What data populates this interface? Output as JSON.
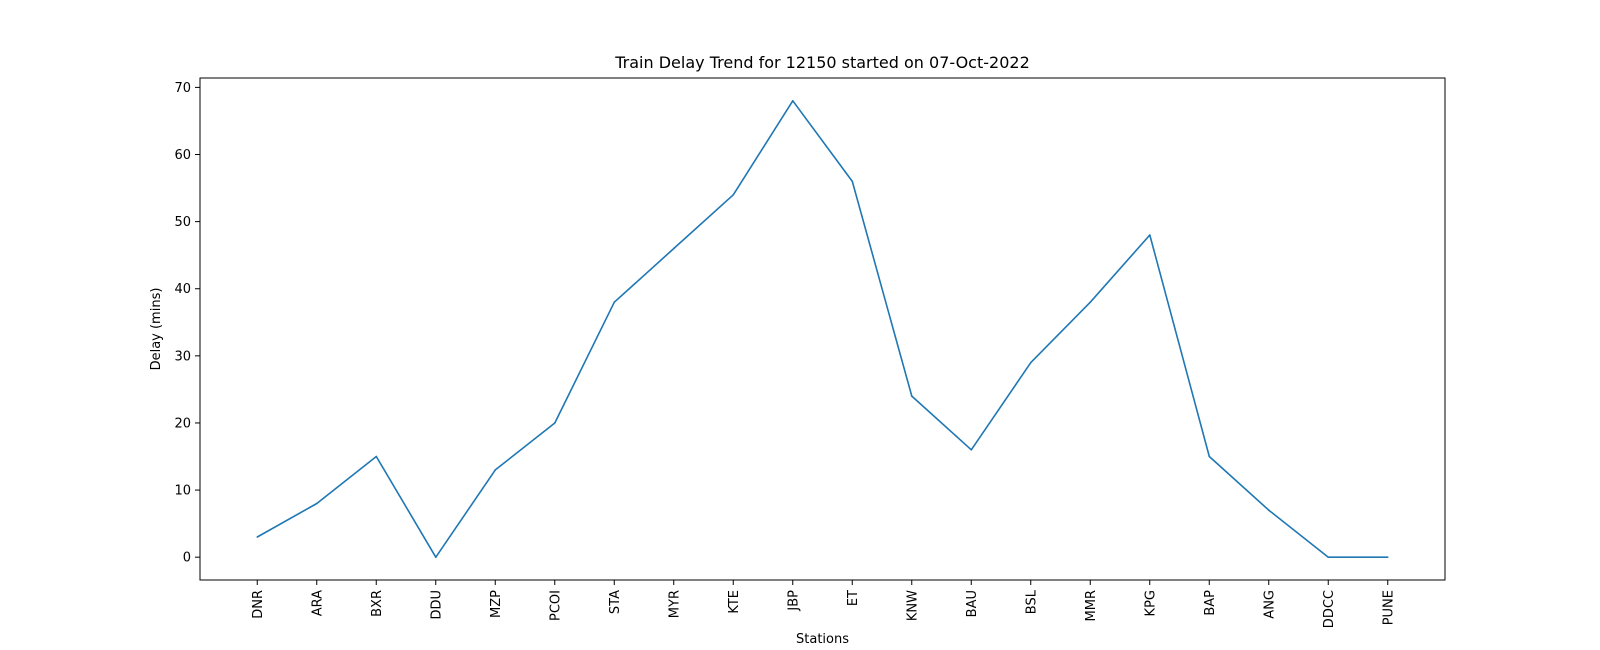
{
  "chart_data": {
    "type": "line",
    "title": "Train Delay Trend for 12150 started on 07-Oct-2022",
    "xlabel": "Stations",
    "ylabel": "Delay (mins)",
    "categories": [
      "DNR",
      "ARA",
      "BXR",
      "DDU",
      "MZP",
      "PCOI",
      "STA",
      "MYR",
      "KTE",
      "JBP",
      "ET",
      "KNW",
      "BAU",
      "BSL",
      "MMR",
      "KPG",
      "BAP",
      "ANG",
      "DDCC",
      "PUNE"
    ],
    "series": [
      {
        "values": [
          3,
          8,
          15,
          0,
          13,
          20,
          38,
          46,
          54,
          68,
          56,
          24,
          16,
          29,
          38,
          48,
          15,
          7,
          0,
          0
        ],
        "color": "#1f77b4"
      }
    ],
    "yticks": [
      0,
      10,
      20,
      30,
      40,
      50,
      60,
      70
    ],
    "ylim": [
      -3.4,
      71.4
    ],
    "grid": false,
    "legend": "none"
  }
}
